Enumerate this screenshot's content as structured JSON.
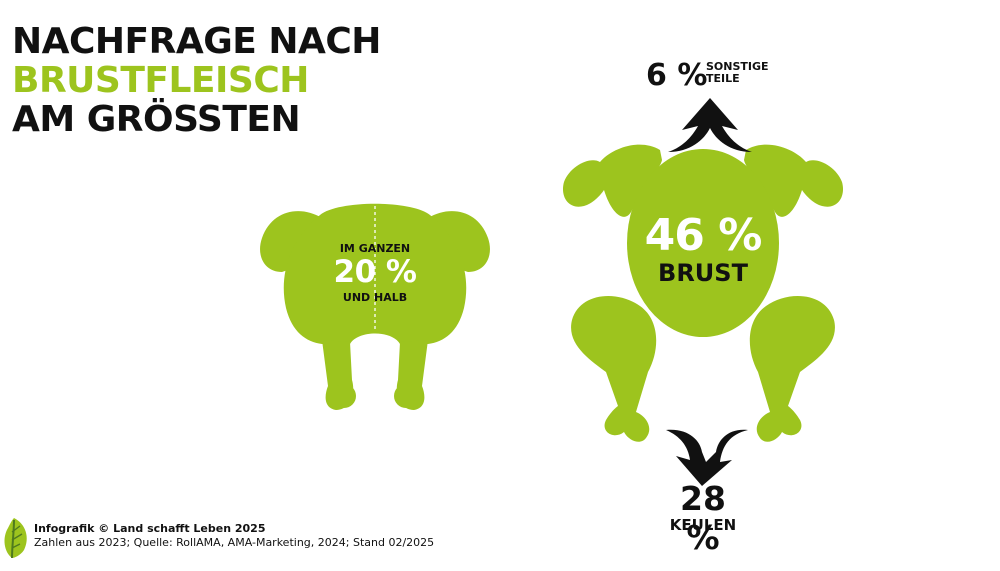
{
  "title": {
    "line1": "NACHFRAGE NACH",
    "line2": "BRUSTFLEISCH",
    "line3": "AM GRÖSSTEN"
  },
  "colors": {
    "accent_green": "#9dc41e",
    "text_dark": "#111111",
    "background": "#ffffff"
  },
  "whole_chicken": {
    "label_top": "IM GANZEN",
    "value": "20 %",
    "label_bottom": "UND HALB"
  },
  "breast": {
    "value": "46 %",
    "label": "BRUST"
  },
  "other_parts": {
    "value": "6 %",
    "label_line1": "SONSTIGE",
    "label_line2": "TEILE"
  },
  "legs": {
    "value": "28 %",
    "label": "KEULEN"
  },
  "credit": {
    "main": "Infografik © Land schafft Leben 2025",
    "source": "Zahlen aus 2023; Quelle: RollAMA, AMA-Marketing, 2024; Stand 02/2025"
  },
  "icons": [
    "whole-chicken-icon",
    "chicken-parts-icon",
    "arrow-up-icon",
    "arrow-down-icon",
    "leaf-logo-icon"
  ]
}
